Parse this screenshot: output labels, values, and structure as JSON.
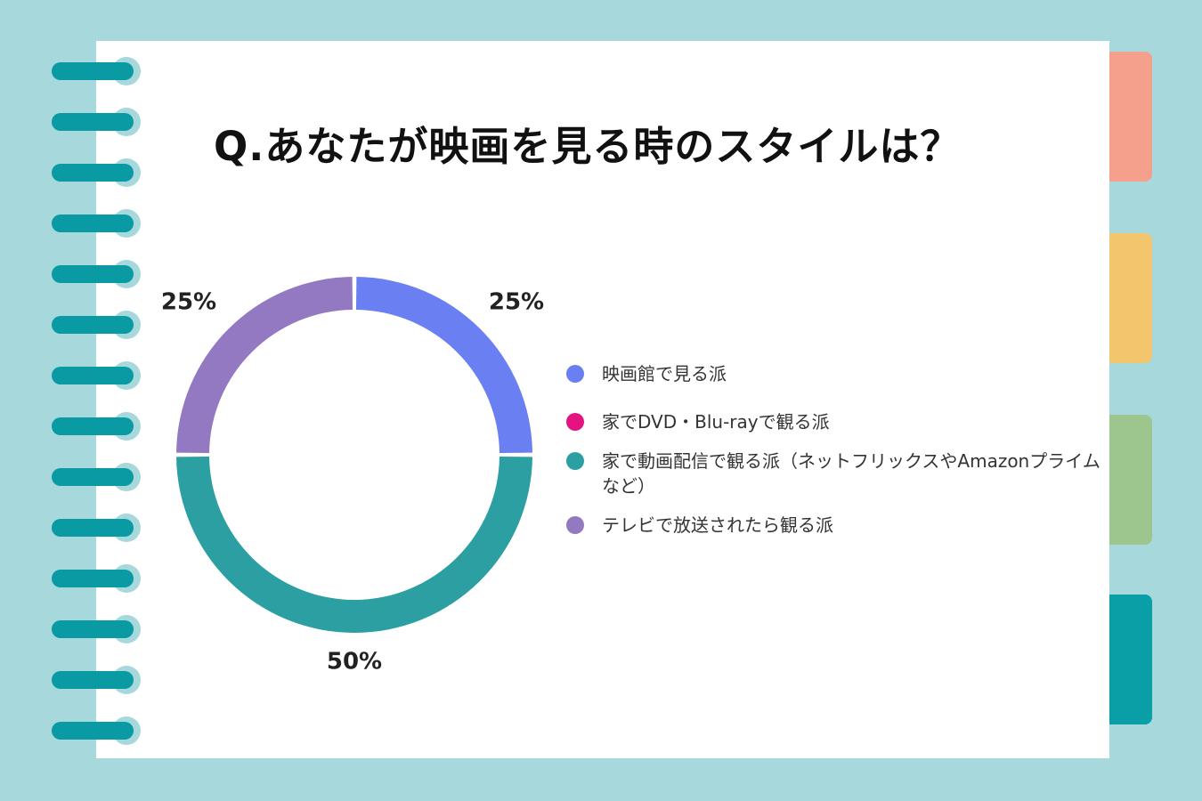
{
  "chart_data": {
    "type": "pie",
    "variant": "donut",
    "title": "Q.あなたが映画を見る時のスタイルは？",
    "slices": [
      {
        "label": "映画館で見る派",
        "value": 25,
        "display": "25%",
        "color": "#6a7ff2"
      },
      {
        "label": "家でDVD・Blu-rayで観る派",
        "value": 0,
        "display": "",
        "color": "#e3147f"
      },
      {
        "label": "家で動画配信で観る派（ネットフリックスやAmazonプライムなど）",
        "value": 50,
        "display": "50%",
        "color": "#2b9fa2"
      },
      {
        "label": "テレビで放送されたら観る派",
        "value": 25,
        "display": "25%",
        "color": "#9379c2"
      }
    ],
    "legend_position": "right"
  },
  "decor": {
    "background": "#a6d8dc",
    "tabs": [
      "#f5a08c",
      "#f3c56c",
      "#9cc68e",
      "#0a9ea6"
    ]
  }
}
